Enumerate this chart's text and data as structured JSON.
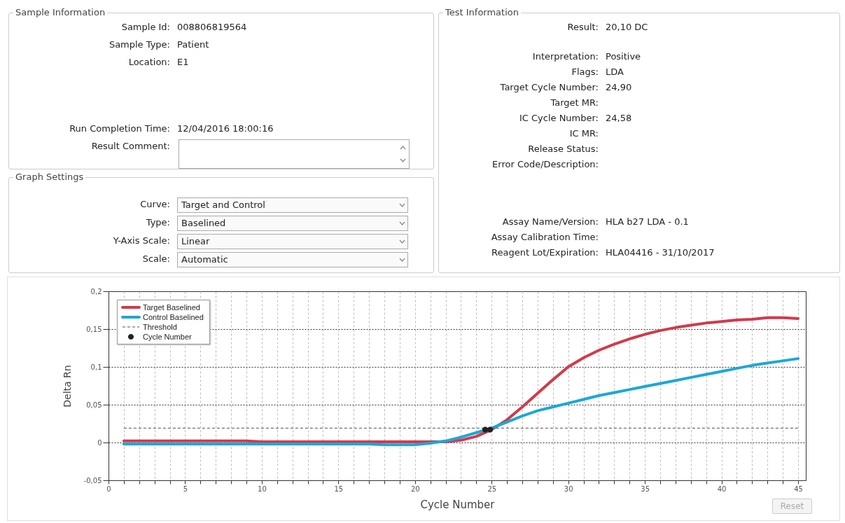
{
  "chart_data": [
    {
      "type": "other",
      "title": "Sample Information",
      "annotations": [
        "Sample Id: 008806819564",
        "Sample Type: Patient",
        "Location: E1",
        "Run Completion Time: 12/04/2016 18:00:16",
        "Result Comment:"
      ]
    },
    {
      "type": "other",
      "title": "Graph Settings",
      "annotations": [
        "Curve: Target and Control",
        "Type: Baselined",
        "Y-Axis Scale: Linear",
        "Scale: Automatic"
      ]
    },
    {
      "type": "other",
      "title": "Test Information",
      "annotations": [
        "Result: 20,10 DC",
        "Interpretation: Positive",
        "Flags: LDA",
        "Target Cycle Number: 24,90",
        "Target MR:",
        "IC Cycle Number: 24,58",
        "IC MR:",
        "Release Status:",
        "Error Code/Description:",
        "Assay Name/Version: HLA b27 LDA - 0.1",
        "Assay Calibration Time:",
        "Reagent Lot/Expiration: HLA04416 - 31/10/2017"
      ]
    },
    {
      "type": "line",
      "xlabel": "Cycle Number",
      "ylabel": "Delta Rn",
      "annotations": [
        "Reset"
      ],
      "xlim": [
        0,
        45.5
      ],
      "ylim": [
        -0.05,
        0.2
      ],
      "xticks": [
        0,
        {
          "value": 1,
          "label": null
        },
        {
          "value": 2,
          "label": null
        },
        {
          "value": 3,
          "label": null
        },
        {
          "value": 4,
          "label": null
        },
        5,
        {
          "value": 6,
          "label": null
        },
        {
          "value": 7,
          "label": null
        },
        {
          "value": 8,
          "label": null
        },
        {
          "value": 9,
          "label": null
        },
        10,
        {
          "value": 11,
          "label": null
        },
        {
          "value": 12,
          "label": null
        },
        {
          "value": 13,
          "label": null
        },
        {
          "value": 14,
          "label": null
        },
        15,
        {
          "value": 16,
          "label": null
        },
        {
          "value": 17,
          "label": null
        },
        {
          "value": 18,
          "label": null
        },
        {
          "value": 19,
          "label": null
        },
        20,
        {
          "value": 21,
          "label": null
        },
        {
          "value": 22,
          "label": null
        },
        {
          "value": 23,
          "label": null
        },
        {
          "value": 24,
          "label": null
        },
        25,
        {
          "value": 26,
          "label": null
        },
        {
          "value": 27,
          "label": null
        },
        {
          "value": 28,
          "label": null
        },
        {
          "value": 29,
          "label": null
        },
        30,
        {
          "value": 31,
          "label": null
        },
        {
          "value": 32,
          "label": null
        },
        {
          "value": 33,
          "label": null
        },
        {
          "value": 34,
          "label": null
        },
        35,
        {
          "value": 36,
          "label": null
        },
        {
          "value": 37,
          "label": null
        },
        {
          "value": 38,
          "label": null
        },
        {
          "value": 39,
          "label": null
        },
        40,
        {
          "value": 41,
          "label": null
        },
        {
          "value": 42,
          "label": null
        },
        {
          "value": 43,
          "label": null
        },
        {
          "value": 44,
          "label": null
        },
        45
      ],
      "yticks": [
        {
          "value": -0.05,
          "label": "-0,05"
        },
        0,
        {
          "value": 0.05,
          "label": "0,05"
        },
        {
          "value": 0.1,
          "label": "0,1"
        },
        {
          "value": 0.15,
          "label": "0,15"
        },
        {
          "value": 0.2,
          "label": "0,2"
        }
      ],
      "grid": true,
      "legend": "top left",
      "x": [
        1,
        2,
        3,
        4,
        5,
        6,
        7,
        8,
        9,
        10,
        11,
        12,
        13,
        14,
        15,
        16,
        17,
        18,
        19,
        20,
        21,
        22,
        23,
        24,
        25,
        26,
        27,
        28,
        29,
        30,
        31,
        32,
        33,
        34,
        35,
        36,
        37,
        38,
        39,
        40,
        41,
        42,
        43,
        44,
        45
      ],
      "series": [
        {
          "name": "Target Baselined",
          "color": "#d23a4c",
          "line_style": "solid",
          "values": [
            0.002,
            0.002,
            0.002,
            0.002,
            0.002,
            0.002,
            0.002,
            0.002,
            0.002,
            0.001,
            0.001,
            0.001,
            0.001,
            0.001,
            0.001,
            0.001,
            0.001,
            0.001,
            0.001,
            0.001,
            0.001,
            0.001,
            0.003,
            0.008,
            0.017,
            0.03,
            0.047,
            0.065,
            0.083,
            0.1,
            0.112,
            0.122,
            0.13,
            0.137,
            0.143,
            0.148,
            0.152,
            0.155,
            0.158,
            0.16,
            0.162,
            0.163,
            0.165,
            0.165,
            0.164
          ]
        },
        {
          "name": "Control Baselined",
          "color": "#1ba8d6",
          "line_style": "solid",
          "values": [
            -0.002,
            -0.002,
            -0.002,
            -0.002,
            -0.002,
            -0.002,
            -0.002,
            -0.002,
            -0.002,
            -0.002,
            -0.002,
            -0.002,
            -0.002,
            -0.002,
            -0.002,
            -0.002,
            -0.002,
            -0.003,
            -0.003,
            -0.003,
            -0.001,
            0.002,
            0.007,
            0.013,
            0.019,
            0.027,
            0.035,
            0.042,
            0.047,
            0.052,
            0.057,
            0.062,
            0.066,
            0.07,
            0.074,
            0.078,
            0.082,
            0.086,
            0.09,
            0.094,
            0.098,
            0.102,
            0.105,
            0.108,
            0.111
          ]
        },
        {
          "name": "Threshold",
          "color": "#555555",
          "line_style": "dashed",
          "x": [
            1,
            45
          ],
          "values": [
            0.019,
            0.019
          ]
        },
        {
          "name": "Cycle Number",
          "type": "scatter",
          "color": "#222222",
          "marker": "circle",
          "x": [
            24.58,
            24.9
          ],
          "values": [
            0.017,
            0.017
          ]
        }
      ]
    }
  ]
}
